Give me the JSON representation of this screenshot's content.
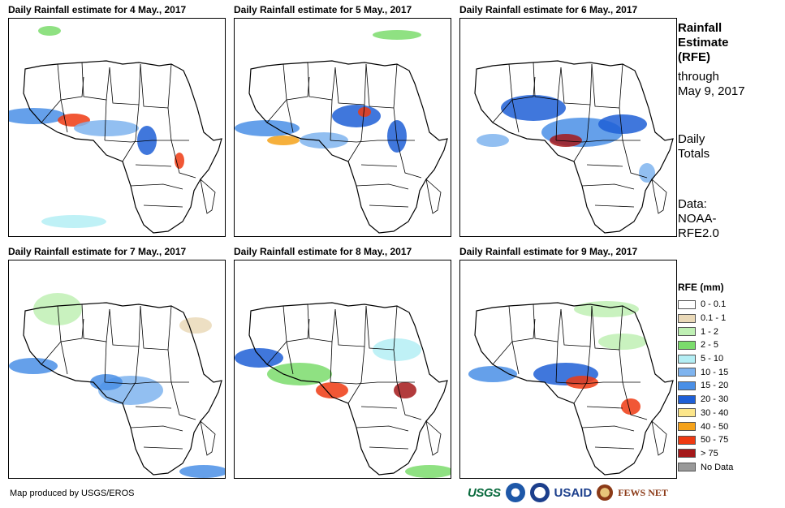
{
  "panels": [
    {
      "title": "Daily Rainfall estimate for 4 May., 2017"
    },
    {
      "title": "Daily Rainfall estimate for 5 May., 2017"
    },
    {
      "title": "Daily Rainfall estimate for 6 May., 2017"
    },
    {
      "title": "Daily Rainfall estimate for 7 May., 2017"
    },
    {
      "title": "Daily Rainfall estimate for 8 May., 2017"
    },
    {
      "title": "Daily Rainfall estimate for 9 May., 2017"
    }
  ],
  "sidebar": {
    "heading_1": "Rainfall",
    "heading_2": "Estimate",
    "heading_3": "(RFE)",
    "through_1": "through",
    "through_2": "May 9, 2017",
    "totals_1": "Daily",
    "totals_2": "Totals",
    "source_1": "Data:",
    "source_2": "NOAA-",
    "source_3": "RFE2.0"
  },
  "legend": {
    "title": "RFE (mm)",
    "items": [
      {
        "label": "0 - 0.1",
        "color": "#ffffff"
      },
      {
        "label": "0.1 - 1",
        "color": "#ead9b8"
      },
      {
        "label": "1 - 2",
        "color": "#bff0b4"
      },
      {
        "label": "2 - 5",
        "color": "#7bdc6c"
      },
      {
        "label": "5 - 10",
        "color": "#b4eef4"
      },
      {
        "label": "10 - 15",
        "color": "#7fb4ef"
      },
      {
        "label": "15 - 20",
        "color": "#4a8fe6"
      },
      {
        "label": "20 - 30",
        "color": "#1f5fd6"
      },
      {
        "label": "30 - 40",
        "color": "#fce68a"
      },
      {
        "label": "40 - 50",
        "color": "#f5a21a"
      },
      {
        "label": "50 - 75",
        "color": "#ee3a12"
      },
      {
        "label": "> 75",
        "color": "#a5191a"
      },
      {
        "label": "No Data",
        "color": "#999999"
      }
    ]
  },
  "credit": "Map produced by USGS/EROS",
  "logos": {
    "usgs": "USGS",
    "usaid": "USAID",
    "fews": "FEWS NET"
  }
}
